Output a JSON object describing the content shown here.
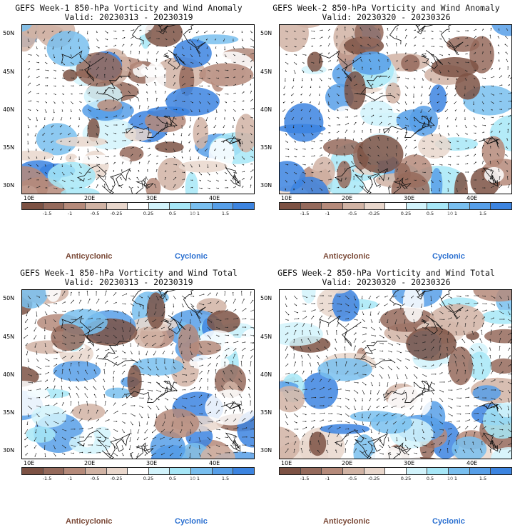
{
  "colorbar": {
    "labels": [
      "-1.5",
      "-1",
      "-0.5",
      "-0.25",
      "0.25",
      "0.5",
      "1",
      "1.5"
    ],
    "mid_label": "10",
    "colors": [
      "#7d5244",
      "#956a5c",
      "#b58a7a",
      "#d1b3a4",
      "#e9d7cc",
      "#ffffff",
      "#d2f3fb",
      "#a7e7f7",
      "#79bfef",
      "#579fe8",
      "#3c84e0"
    ]
  },
  "axes": {
    "lat_labels": [
      "50N",
      "45N",
      "40N",
      "35N",
      "30N"
    ],
    "lon_labels": [
      "10E",
      "20E",
      "30E",
      "40E"
    ]
  },
  "legend": {
    "anticyclonic": "Anticyclonic",
    "cyclonic": "Cyclonic"
  },
  "panels": [
    {
      "title": "GEFS Week-1 850-hPa Vorticity and Wind Anomaly",
      "valid": "Valid: 20230313 - 20230319",
      "seed": 11
    },
    {
      "title": "GEFS Week-2 850-hPa Vorticity and Wind Anomaly",
      "valid": "Valid: 20230320 - 20230326",
      "seed": 23
    },
    {
      "title": "GEFS Week-1 850-hPa Vorticity and Wind Total",
      "valid": "Valid: 20230313 - 20230319",
      "seed": 37
    },
    {
      "title": "GEFS Week-2 850-hPa Vorticity and Wind Total",
      "valid": "Valid: 20230320 - 20230326",
      "seed": 51
    }
  ]
}
